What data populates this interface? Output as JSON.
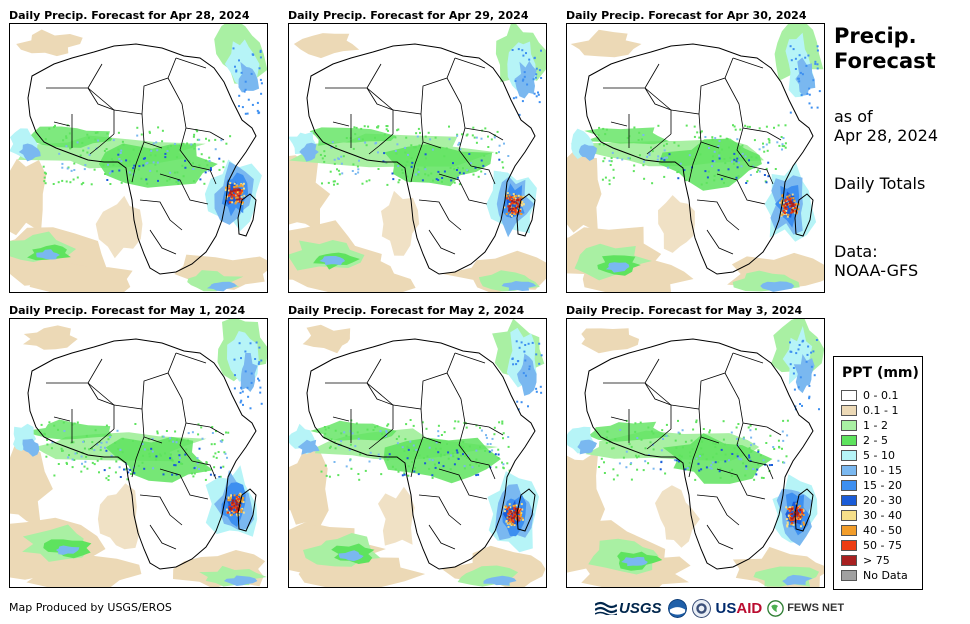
{
  "panels": [
    {
      "title": "Daily Precip. Forecast for Apr 28, 2024"
    },
    {
      "title": "Daily Precip. Forecast for Apr 29, 2024"
    },
    {
      "title": "Daily Precip. Forecast for Apr 30, 2024"
    },
    {
      "title": "Daily Precip. Forecast for May 1, 2024"
    },
    {
      "title": "Daily Precip. Forecast for May 2, 2024"
    },
    {
      "title": "Daily Precip. Forecast for May 3, 2024"
    }
  ],
  "side": {
    "title_line1": "Precip.",
    "title_line2": "Forecast",
    "asof_line1": "as of",
    "asof_line2": "Apr 28, 2024",
    "totals": "Daily Totals",
    "data_line1": "Data:",
    "data_line2": "NOAA-GFS"
  },
  "legend": {
    "title": "PPT (mm)",
    "items": [
      {
        "label": "0 - 0.1",
        "color": "#ffffff"
      },
      {
        "label": "0.1 - 1",
        "color": "#ecd9b6"
      },
      {
        "label": "1 - 2",
        "color": "#a9f0a3"
      },
      {
        "label": "2 - 5",
        "color": "#5ee35e"
      },
      {
        "label": "5 - 10",
        "color": "#b6f4f7"
      },
      {
        "label": "10 - 15",
        "color": "#7ab8f0"
      },
      {
        "label": "15 - 20",
        "color": "#3d8ff0"
      },
      {
        "label": "20 - 30",
        "color": "#1a5cd8"
      },
      {
        "label": "30 - 40",
        "color": "#f6df8a"
      },
      {
        "label": "40 - 50",
        "color": "#f29d2a"
      },
      {
        "label": "50 - 75",
        "color": "#ec3c12"
      },
      {
        "label": "> 75",
        "color": "#a82020"
      },
      {
        "label": "No Data",
        "color": "#a0a0a0"
      }
    ]
  },
  "footer": {
    "credit": "Map Produced by USGS/EROS",
    "logo_usgs": "USGS",
    "logo_usaid_us": "US",
    "logo_usaid_aid": "AID",
    "logo_fews": "FEWS NET"
  }
}
